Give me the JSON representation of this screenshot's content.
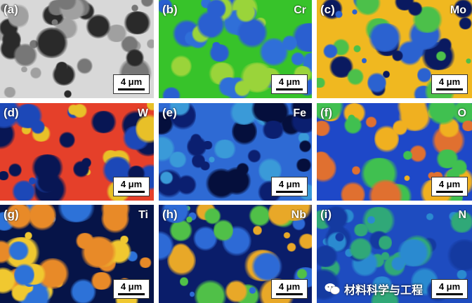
{
  "panels": [
    {
      "label": "(a)",
      "element": "",
      "scale": "4 μm",
      "colors": {
        "bg": "#d8d8d8",
        "blob": [
          "#2a2a2a",
          "#777777",
          "#a0a0a0"
        ]
      }
    },
    {
      "label": "(b)",
      "element": "Cr",
      "scale": "4 μm",
      "colors": {
        "bg": "#37c32a",
        "blob": [
          "#2f6fd8",
          "#2a5fd0",
          "#9ad43a"
        ]
      }
    },
    {
      "label": "(c)",
      "element": "Mo",
      "scale": "4 μm",
      "colors": {
        "bg": "#f0b820",
        "blob": [
          "#0a1a60",
          "#2b62d0",
          "#4cc04a"
        ]
      }
    },
    {
      "label": "(d)",
      "element": "W",
      "scale": "4 μm",
      "colors": {
        "bg": "#e5402a",
        "blob": [
          "#081654",
          "#1c48b8",
          "#e8c028"
        ]
      }
    },
    {
      "label": "(e)",
      "element": "Fe",
      "scale": "4 μm",
      "colors": {
        "bg": "#2e6ad4",
        "blob": [
          "#050f3c",
          "#0b1f70",
          "#3a9ad8"
        ]
      }
    },
    {
      "label": "(f)",
      "element": "O",
      "scale": "4 μm",
      "colors": {
        "bg": "#1e48c8",
        "blob": [
          "#f0b020",
          "#e07030",
          "#40c050"
        ]
      }
    },
    {
      "label": "(g)",
      "element": "Ti",
      "scale": "4 μm",
      "colors": {
        "bg": "#061448",
        "blob": [
          "#2d72d8",
          "#e88a28",
          "#f0c830"
        ]
      }
    },
    {
      "label": "(h)",
      "element": "Nb",
      "scale": "4 μm",
      "colors": {
        "bg": "#0a1d6a",
        "blob": [
          "#2d6ad6",
          "#e8a828",
          "#50c048"
        ]
      }
    },
    {
      "label": "(i)",
      "element": "N",
      "scale": "4 μm",
      "colors": {
        "bg": "#1e4cc0",
        "blob": [
          "#2a8ad0",
          "#30a878",
          "#143aa0"
        ]
      }
    }
  ],
  "watermark": {
    "text": "材料科学与工程",
    "icon": "wechat-icon"
  }
}
